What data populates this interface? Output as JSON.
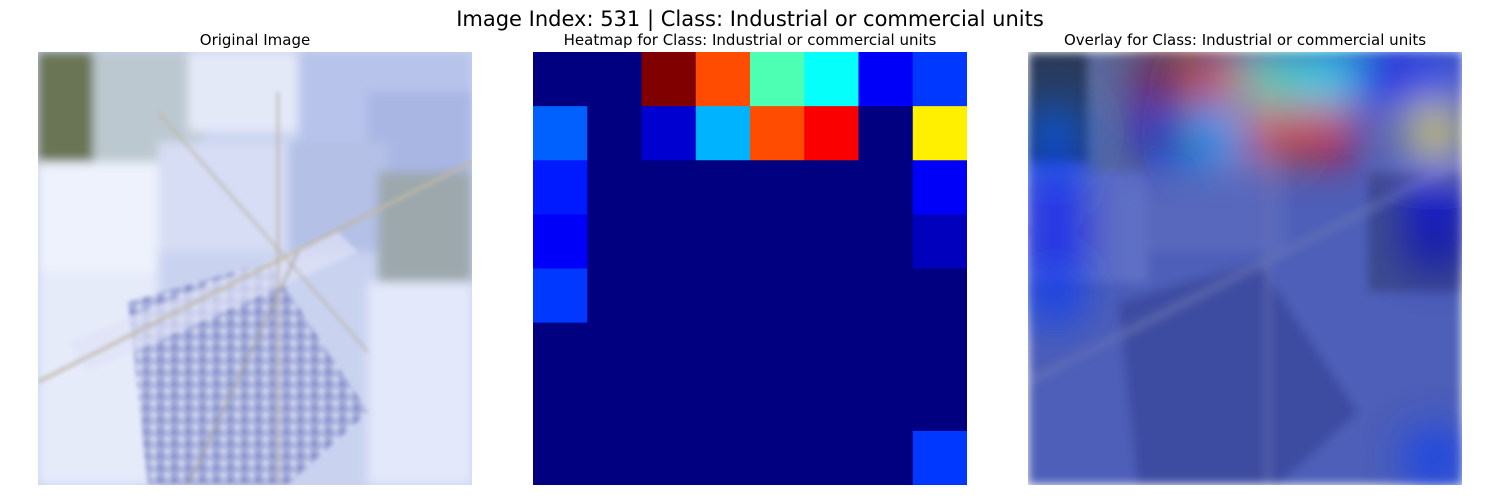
{
  "figure": {
    "suptitle": "Image Index: 531 | Class: Industrial or commercial units"
  },
  "panels": {
    "original": {
      "title": "Original Image"
    },
    "heatmap": {
      "title": "Heatmap for Class: Industrial or commercial units"
    },
    "overlay": {
      "title": "Overlay for Class: Industrial or commercial units"
    }
  },
  "chart_data": {
    "type": "heatmap",
    "colormap": "jet",
    "grid": false,
    "axes_visible": false,
    "rows": 8,
    "cols": 8,
    "values": [
      [
        0.0,
        0.0,
        1.0,
        0.8,
        0.45,
        0.38,
        0.12,
        0.18
      ],
      [
        0.22,
        0.0,
        0.08,
        0.3,
        0.8,
        0.88,
        0.0,
        0.64
      ],
      [
        0.15,
        0.0,
        0.0,
        0.0,
        0.0,
        0.0,
        0.0,
        0.12
      ],
      [
        0.12,
        0.0,
        0.0,
        0.0,
        0.0,
        0.0,
        0.0,
        0.06
      ],
      [
        0.18,
        0.0,
        0.0,
        0.0,
        0.0,
        0.0,
        0.0,
        0.0
      ],
      [
        0.0,
        0.0,
        0.0,
        0.0,
        0.0,
        0.0,
        0.0,
        0.0
      ],
      [
        0.0,
        0.0,
        0.0,
        0.0,
        0.0,
        0.0,
        0.0,
        0.0
      ],
      [
        0.0,
        0.0,
        0.0,
        0.0,
        0.0,
        0.0,
        0.0,
        0.18
      ]
    ]
  }
}
